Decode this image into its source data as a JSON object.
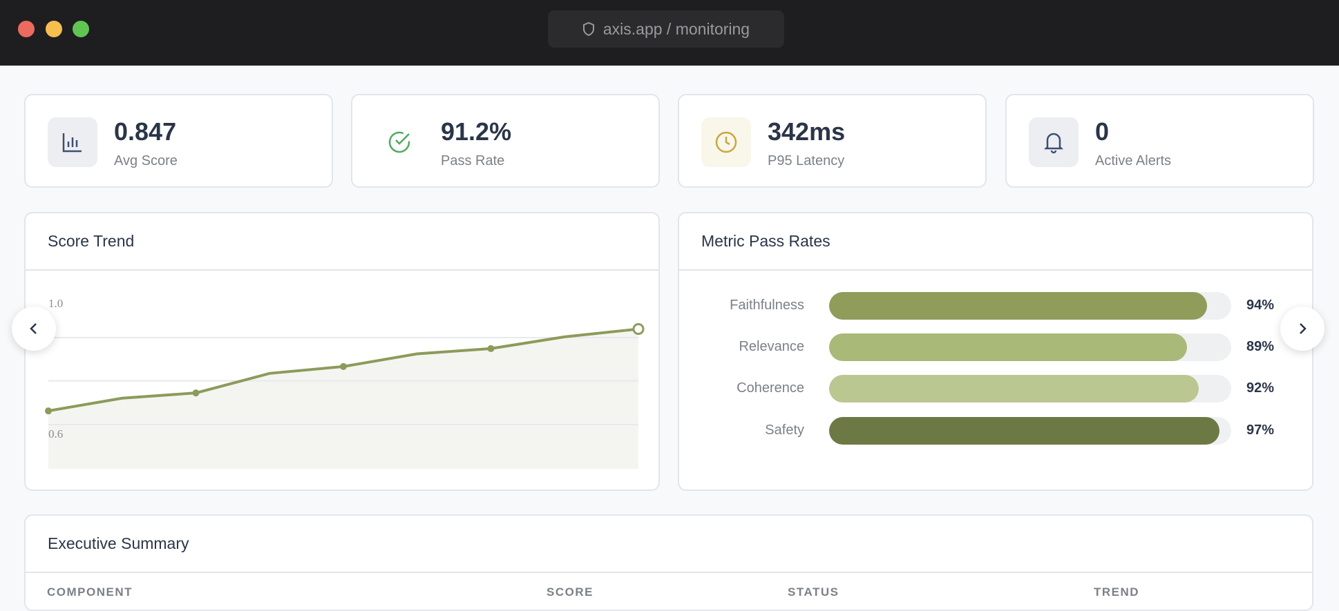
{
  "browser": {
    "url": "axis.app / monitoring",
    "url_icon": "shield-icon"
  },
  "stats": [
    {
      "value": "0.847",
      "label": "Avg Score",
      "icon": "bar-chart-icon",
      "icon_color": "#3d4f72",
      "bg": "#eceef2"
    },
    {
      "value": "91.2%",
      "label": "Pass Rate",
      "icon": "check-circle-icon",
      "icon_color": "#4caa5e",
      "bg": "#ffffff"
    },
    {
      "value": "342ms",
      "label": "P95 Latency",
      "icon": "clock-icon",
      "icon_color": "#c9a63f",
      "bg": "#f9f6ea"
    },
    {
      "value": "0",
      "label": "Active Alerts",
      "icon": "bell-icon",
      "icon_color": "#3d4f72",
      "bg": "#eceef2"
    }
  ],
  "score_trend": {
    "title": "Score Trend"
  },
  "pass_rates": {
    "title": "Metric Pass Rates"
  },
  "summary": {
    "title": "Executive Summary",
    "columns": [
      "COMPONENT",
      "SCORE",
      "STATUS",
      "TREND"
    ]
  },
  "chart_data": [
    {
      "type": "area",
      "title": "Score Trend",
      "y_ticks": [
        "1.0",
        "0.6"
      ],
      "ylim": [
        0.464,
        1.0
      ],
      "values": [
        0.642,
        0.681,
        0.697,
        0.757,
        0.778,
        0.817,
        0.833,
        0.869,
        0.893
      ],
      "color": "#8c9b5a",
      "fill": "#f4f5f0",
      "grid": true
    },
    {
      "type": "bar",
      "orientation": "horizontal",
      "title": "Metric Pass Rates",
      "categories": [
        "Faithfulness",
        "Relevance",
        "Coherence",
        "Safety"
      ],
      "values": [
        94,
        89,
        92,
        97
      ],
      "labels": [
        "94%",
        "89%",
        "92%",
        "97%"
      ],
      "colors": [
        "#8f9c5a",
        "#a9b978",
        "#bbc791",
        "#6d7944"
      ],
      "xlim": [
        0,
        100
      ]
    }
  ]
}
